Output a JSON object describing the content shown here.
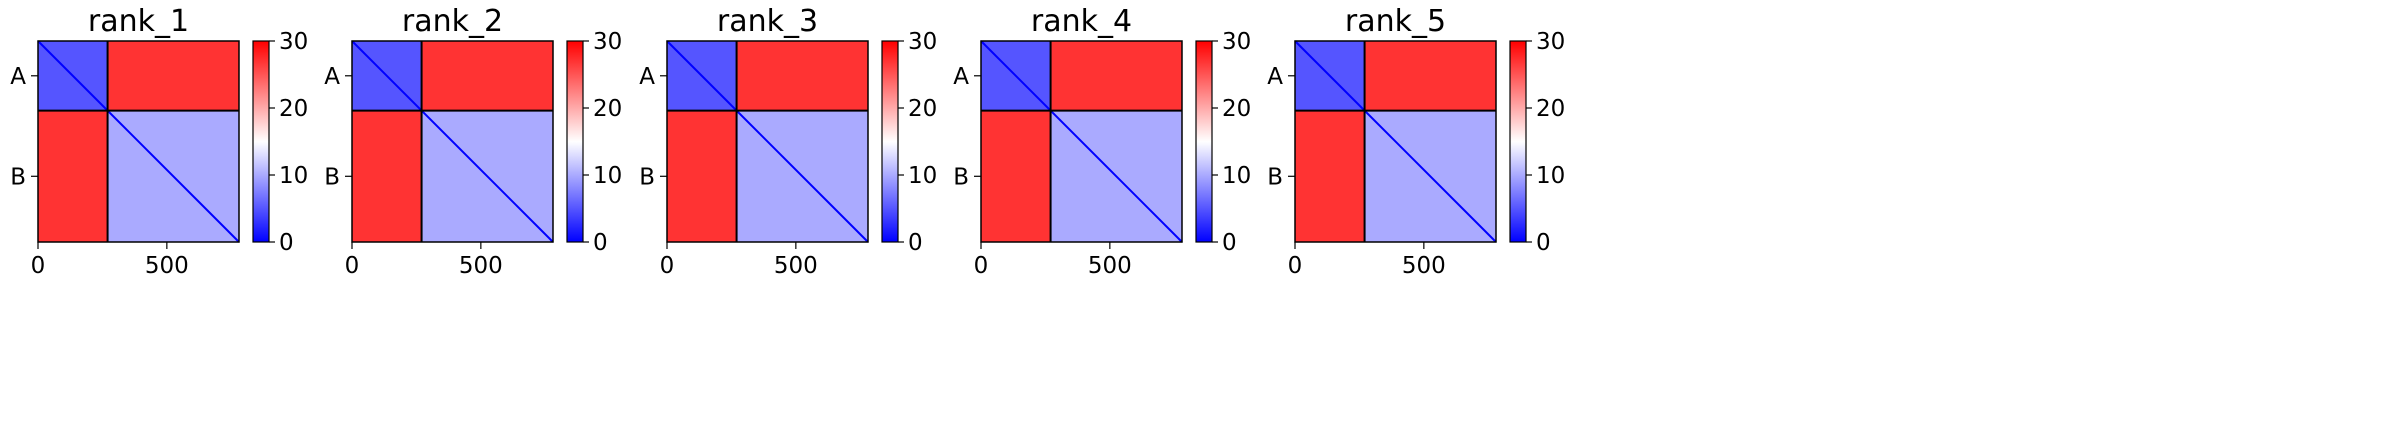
{
  "chart_data": [
    {
      "type": "heatmap",
      "title": "rank_1",
      "xticks": [
        0,
        500
      ],
      "yticks": [
        "A",
        "B"
      ],
      "chain_labels": [
        "A",
        "B"
      ],
      "chain_boundary": 270,
      "xlim": [
        0,
        780
      ],
      "ylim": [
        780,
        0
      ],
      "colorbar": {
        "ticks": [
          0,
          10,
          20,
          30
        ],
        "range": [
          0,
          30
        ],
        "colors": [
          "#0000ff",
          "#ffffff",
          "#ff0000"
        ]
      },
      "block_means": {
        "A_A": 5,
        "A_B": 27,
        "B_A": 27,
        "B_B": 10
      }
    },
    {
      "type": "heatmap",
      "title": "rank_2",
      "xticks": [
        0,
        500
      ],
      "yticks": [
        "A",
        "B"
      ],
      "chain_labels": [
        "A",
        "B"
      ],
      "chain_boundary": 270,
      "xlim": [
        0,
        780
      ],
      "ylim": [
        780,
        0
      ],
      "colorbar": {
        "ticks": [
          0,
          10,
          20,
          30
        ],
        "range": [
          0,
          30
        ],
        "colors": [
          "#0000ff",
          "#ffffff",
          "#ff0000"
        ]
      },
      "block_means": {
        "A_A": 5,
        "A_B": 27,
        "B_A": 27,
        "B_B": 10
      }
    },
    {
      "type": "heatmap",
      "title": "rank_3",
      "xticks": [
        0,
        500
      ],
      "yticks": [
        "A",
        "B"
      ],
      "chain_labels": [
        "A",
        "B"
      ],
      "chain_boundary": 270,
      "xlim": [
        0,
        780
      ],
      "ylim": [
        780,
        0
      ],
      "colorbar": {
        "ticks": [
          0,
          10,
          20,
          30
        ],
        "range": [
          0,
          30
        ],
        "colors": [
          "#0000ff",
          "#ffffff",
          "#ff0000"
        ]
      },
      "block_means": {
        "A_A": 5,
        "A_B": 27,
        "B_A": 27,
        "B_B": 10
      }
    },
    {
      "type": "heatmap",
      "title": "rank_4",
      "xticks": [
        0,
        500
      ],
      "yticks": [
        "A",
        "B"
      ],
      "chain_labels": [
        "A",
        "B"
      ],
      "chain_boundary": 270,
      "xlim": [
        0,
        780
      ],
      "ylim": [
        780,
        0
      ],
      "colorbar": {
        "ticks": [
          0,
          10,
          20,
          30
        ],
        "range": [
          0,
          30
        ],
        "colors": [
          "#0000ff",
          "#ffffff",
          "#ff0000"
        ]
      },
      "block_means": {
        "A_A": 5,
        "A_B": 27,
        "B_A": 27,
        "B_B": 10
      }
    },
    {
      "type": "heatmap",
      "title": "rank_5",
      "xticks": [
        0,
        500
      ],
      "yticks": [
        "A",
        "B"
      ],
      "chain_labels": [
        "A",
        "B"
      ],
      "chain_boundary": 270,
      "xlim": [
        0,
        780
      ],
      "ylim": [
        780,
        0
      ],
      "colorbar": {
        "ticks": [
          0,
          10,
          20,
          30
        ],
        "range": [
          0,
          30
        ],
        "colors": [
          "#0000ff",
          "#ffffff",
          "#ff0000"
        ]
      },
      "block_means": {
        "A_A": 5,
        "A_B": 27,
        "B_A": 27,
        "B_B": 10
      }
    }
  ]
}
